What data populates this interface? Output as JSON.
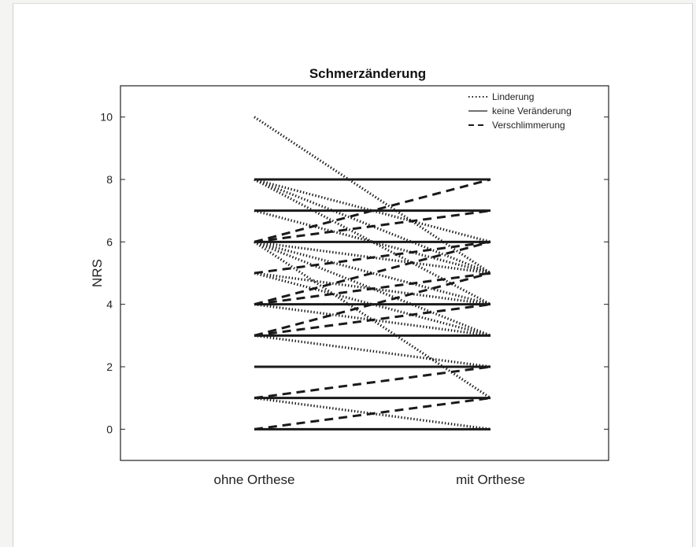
{
  "chart_data": {
    "type": "line",
    "title": "Schmerzänderung",
    "xlabel": "",
    "ylabel": "NRS",
    "categories": [
      "ohne Orthese",
      "mit Orthese"
    ],
    "ylim": [
      -1,
      11
    ],
    "yticks": [
      0,
      2,
      4,
      6,
      8,
      10
    ],
    "legend": {
      "position": "top-right",
      "entries": [
        {
          "label": "Linderung",
          "style": "dotted"
        },
        {
          "label": "keine Veränderung",
          "style": "solid"
        },
        {
          "label": "Verschlimmerung",
          "style": "dashed"
        }
      ]
    },
    "series": [
      {
        "group": "keine Veränderung",
        "values": [
          0,
          0
        ]
      },
      {
        "group": "keine Veränderung",
        "values": [
          1,
          1
        ]
      },
      {
        "group": "keine Veränderung",
        "values": [
          2,
          2
        ]
      },
      {
        "group": "keine Veränderung",
        "values": [
          3,
          3
        ]
      },
      {
        "group": "keine Veränderung",
        "values": [
          4,
          4
        ]
      },
      {
        "group": "keine Veränderung",
        "values": [
          6,
          6
        ]
      },
      {
        "group": "keine Veränderung",
        "values": [
          7,
          7
        ]
      },
      {
        "group": "keine Veränderung",
        "values": [
          8,
          8
        ]
      },
      {
        "group": "Linderung",
        "values": [
          10,
          5
        ]
      },
      {
        "group": "Linderung",
        "values": [
          8,
          6
        ]
      },
      {
        "group": "Linderung",
        "values": [
          8,
          5
        ]
      },
      {
        "group": "Linderung",
        "values": [
          8,
          4
        ]
      },
      {
        "group": "Linderung",
        "values": [
          7,
          5
        ]
      },
      {
        "group": "Linderung",
        "values": [
          6,
          5
        ]
      },
      {
        "group": "Linderung",
        "values": [
          6,
          4
        ]
      },
      {
        "group": "Linderung",
        "values": [
          6,
          3
        ]
      },
      {
        "group": "Linderung",
        "values": [
          6,
          1
        ]
      },
      {
        "group": "Linderung",
        "values": [
          5,
          4
        ]
      },
      {
        "group": "Linderung",
        "values": [
          5,
          3
        ]
      },
      {
        "group": "Linderung",
        "values": [
          4,
          3
        ]
      },
      {
        "group": "Linderung",
        "values": [
          3,
          2
        ]
      },
      {
        "group": "Linderung",
        "values": [
          1,
          0
        ]
      },
      {
        "group": "Verschlimmerung",
        "values": [
          6,
          8
        ]
      },
      {
        "group": "Verschlimmerung",
        "values": [
          6,
          7
        ]
      },
      {
        "group": "Verschlimmerung",
        "values": [
          5,
          6
        ]
      },
      {
        "group": "Verschlimmerung",
        "values": [
          4,
          6
        ]
      },
      {
        "group": "Verschlimmerung",
        "values": [
          4,
          5
        ]
      },
      {
        "group": "Verschlimmerung",
        "values": [
          3,
          5
        ]
      },
      {
        "group": "Verschlimmerung",
        "values": [
          3,
          4
        ]
      },
      {
        "group": "Verschlimmerung",
        "values": [
          1,
          2
        ]
      },
      {
        "group": "Verschlimmerung",
        "values": [
          0,
          1
        ]
      }
    ]
  }
}
